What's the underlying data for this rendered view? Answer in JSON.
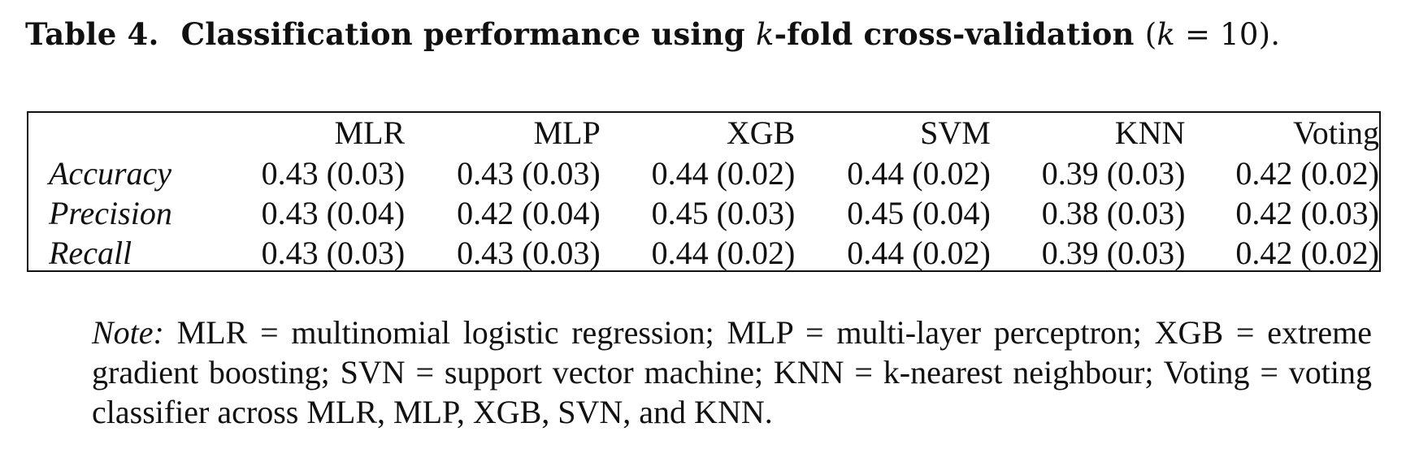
{
  "caption": {
    "label": "Table 4.",
    "text_before": "Classification performance using",
    "k_symbol": "k",
    "text_after": "-fold cross-validation",
    "paren_open": "(",
    "k_eq": "k",
    "eq_value": " = 10",
    "paren_close": ").",
    "full_text": "Table 4. Classification performance using k-fold cross-validation (k = 10)."
  },
  "table": {
    "columns": [
      "",
      "MLR",
      "MLP",
      "XGB",
      "SVM",
      "KNN",
      "Voting"
    ],
    "rows": [
      {
        "label": "Accuracy",
        "values": [
          "0.43 (0.03)",
          "0.43 (0.03)",
          "0.44 (0.02)",
          "0.44 (0.02)",
          "0.39 (0.03)",
          "0.42 (0.02)"
        ]
      },
      {
        "label": "Precision",
        "values": [
          "0.43 (0.04)",
          "0.42 (0.04)",
          "0.45 (0.03)",
          "0.45 (0.04)",
          "0.38 (0.03)",
          "0.42 (0.03)"
        ]
      },
      {
        "label": "Recall",
        "values": [
          "0.43 (0.03)",
          "0.43 (0.03)",
          "0.44 (0.02)",
          "0.44 (0.02)",
          "0.39 (0.03)",
          "0.42 (0.02)"
        ]
      }
    ]
  },
  "note": {
    "label": "Note:",
    "text": "MLR = multinomial logistic regression; MLP = multi-layer perceptron; XGB = extreme gradient boosting; SVN = support vector machine; KNN = k-nearest neighbour; Voting = voting classifier across MLR, MLP, XGB, SVN, and KNN."
  }
}
